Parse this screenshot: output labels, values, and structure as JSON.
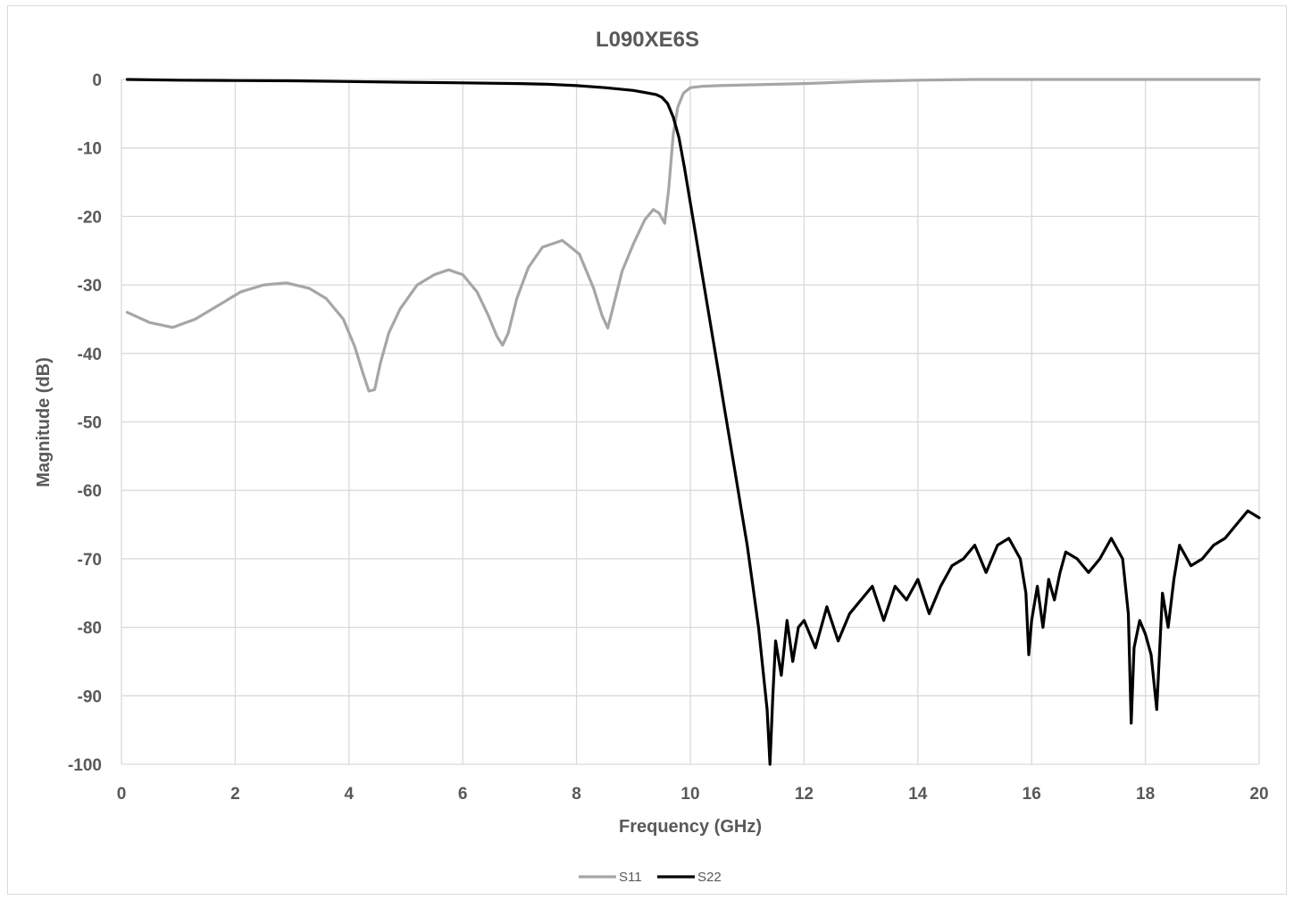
{
  "chart_data": {
    "type": "line",
    "title": "L090XE6S",
    "xlabel": "Frequency (GHz)",
    "ylabel": "Magnitude (dB)",
    "xlim": [
      0,
      20
    ],
    "ylim": [
      -100,
      0
    ],
    "xticks": [
      "0",
      "2",
      "4",
      "6",
      "8",
      "10",
      "12",
      "14",
      "16",
      "18",
      "20"
    ],
    "yticks": [
      "0",
      "-10",
      "-20",
      "-30",
      "-40",
      "-50",
      "-60",
      "-70",
      "-80",
      "-90",
      "-100"
    ],
    "grid": true,
    "legend_position": "bottom",
    "series": [
      {
        "name": "S11",
        "color": "#a6a6a6",
        "x": [
          0.1,
          0.5,
          0.9,
          1.3,
          1.7,
          2.1,
          2.5,
          2.9,
          3.3,
          3.6,
          3.9,
          4.1,
          4.25,
          4.35,
          4.45,
          4.55,
          4.7,
          4.9,
          5.2,
          5.5,
          5.75,
          6.0,
          6.25,
          6.45,
          6.6,
          6.7,
          6.8,
          6.95,
          7.15,
          7.4,
          7.75,
          8.05,
          8.3,
          8.45,
          8.55,
          8.65,
          8.8,
          9.0,
          9.2,
          9.35,
          9.45,
          9.55,
          9.62,
          9.7,
          9.78,
          9.88,
          10.0,
          10.2,
          10.5,
          11.0,
          12.0,
          13.0,
          14.0,
          15.0,
          16.0,
          17.0,
          18.0,
          19.0,
          20.0
        ],
        "y": [
          -34.0,
          -35.5,
          -36.2,
          -35.0,
          -33.0,
          -31.0,
          -30.0,
          -29.7,
          -30.5,
          -32.0,
          -35.0,
          -39.0,
          -43.0,
          -45.5,
          -45.3,
          -41.5,
          -37.0,
          -33.5,
          -30.0,
          -28.5,
          -27.8,
          -28.5,
          -31.0,
          -34.5,
          -37.5,
          -38.8,
          -37.0,
          -32.0,
          -27.5,
          -24.5,
          -23.5,
          -25.5,
          -30.5,
          -34.5,
          -36.3,
          -33.0,
          -28.0,
          -24.0,
          -20.5,
          -19.0,
          -19.5,
          -21.0,
          -16.0,
          -8.0,
          -4.0,
          -2.0,
          -1.2,
          -1.0,
          -0.9,
          -0.8,
          -0.6,
          -0.3,
          -0.1,
          0.0,
          0.0,
          0.0,
          0.0,
          0.0,
          0.0
        ]
      },
      {
        "name": "S22",
        "color": "#000000",
        "x": [
          0.1,
          1,
          2,
          3,
          4,
          5,
          6,
          7,
          7.5,
          8,
          8.5,
          9,
          9.2,
          9.4,
          9.5,
          9.6,
          9.7,
          9.8,
          9.9,
          10.0,
          10.1,
          10.2,
          10.3,
          10.4,
          10.5,
          10.6,
          10.7,
          10.8,
          10.9,
          11.0,
          11.1,
          11.2,
          11.3,
          11.35,
          11.4,
          11.45,
          11.5,
          11.6,
          11.7,
          11.8,
          11.9,
          12.0,
          12.2,
          12.4,
          12.6,
          12.8,
          13.0,
          13.2,
          13.4,
          13.6,
          13.8,
          14.0,
          14.2,
          14.4,
          14.6,
          14.8,
          15.0,
          15.2,
          15.4,
          15.6,
          15.8,
          15.9,
          15.95,
          16.0,
          16.1,
          16.2,
          16.3,
          16.4,
          16.5,
          16.6,
          16.8,
          17.0,
          17.2,
          17.4,
          17.6,
          17.7,
          17.75,
          17.8,
          17.9,
          18.0,
          18.1,
          18.2,
          18.3,
          18.4,
          18.5,
          18.6,
          18.8,
          19.0,
          19.2,
          19.4,
          19.6,
          19.8,
          20.0
        ],
        "y": [
          0.0,
          -0.1,
          -0.15,
          -0.2,
          -0.3,
          -0.4,
          -0.5,
          -0.6,
          -0.7,
          -0.9,
          -1.2,
          -1.6,
          -1.9,
          -2.2,
          -2.6,
          -3.5,
          -5.5,
          -8.5,
          -13.0,
          -18.0,
          -23.0,
          -28.0,
          -33.0,
          -38.0,
          -43.0,
          -48.0,
          -53.0,
          -58.0,
          -63.0,
          -68.0,
          -74.0,
          -80.0,
          -88.0,
          -92.0,
          -100.0,
          -90.0,
          -82.0,
          -87.0,
          -79.0,
          -85.0,
          -80.0,
          -79.0,
          -83.0,
          -77.0,
          -82.0,
          -78.0,
          -76.0,
          -74.0,
          -79.0,
          -74.0,
          -76.0,
          -73.0,
          -78.0,
          -74.0,
          -71.0,
          -70.0,
          -68.0,
          -72.0,
          -68.0,
          -67.0,
          -70.0,
          -75.0,
          -84.0,
          -79.0,
          -74.0,
          -80.0,
          -73.0,
          -76.0,
          -72.0,
          -69.0,
          -70.0,
          -72.0,
          -70.0,
          -67.0,
          -70.0,
          -78.0,
          -94.0,
          -83.0,
          -79.0,
          -81.0,
          -84.0,
          -92.0,
          -75.0,
          -80.0,
          -73.0,
          -68.0,
          -71.0,
          -70.0,
          -68.0,
          -67.0,
          -65.0,
          -63.0,
          -64.0
        ]
      }
    ]
  }
}
